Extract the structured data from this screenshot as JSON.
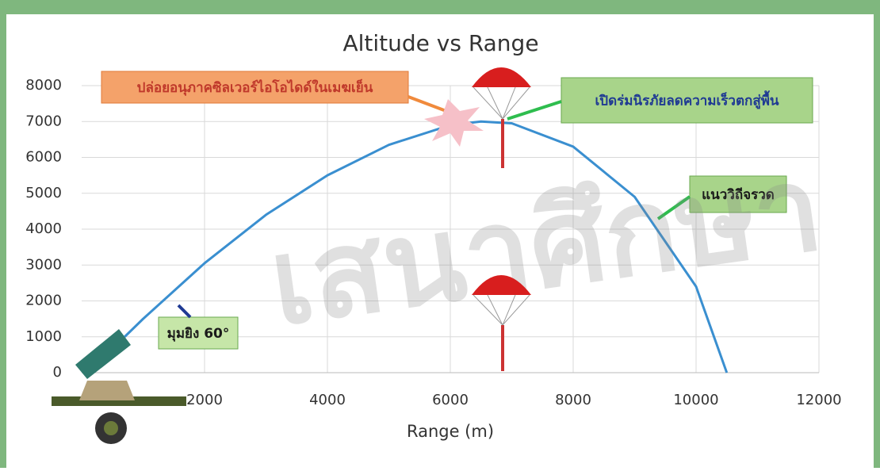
{
  "chart_data": {
    "type": "line",
    "title": "Altitude vs Range",
    "x_label": "Range (m)",
    "x": [
      700,
      1000,
      2000,
      3000,
      4000,
      5000,
      6000,
      6500,
      7000,
      8000,
      9000,
      10000,
      10500
    ],
    "series": [
      {
        "name": "แนววิถีจรวด",
        "color": "#3a8fd0",
        "values": [
          1000,
          1500,
          3050,
          4400,
          5500,
          6350,
          6900,
          7000,
          6950,
          6300,
          4900,
          2400,
          0
        ]
      }
    ],
    "xlim": [
      0,
      12000
    ],
    "xticks": [
      2000,
      4000,
      6000,
      8000,
      10000,
      12000
    ],
    "ylim": [
      0,
      8000
    ],
    "yticks": [
      0,
      1000,
      2000,
      3000,
      4000,
      5000,
      6000,
      7000,
      8000
    ],
    "grid": true,
    "annotations": [
      "ปล่อยอนุภาคซิลเวอร์ไอโอไดด์ในเมฆเย็น",
      "เปิดร่มนิรภัยลดความเร็วตกสู่พื้น",
      "มุมยิง 60°"
    ],
    "watermark": "เสนาศึกษา"
  }
}
